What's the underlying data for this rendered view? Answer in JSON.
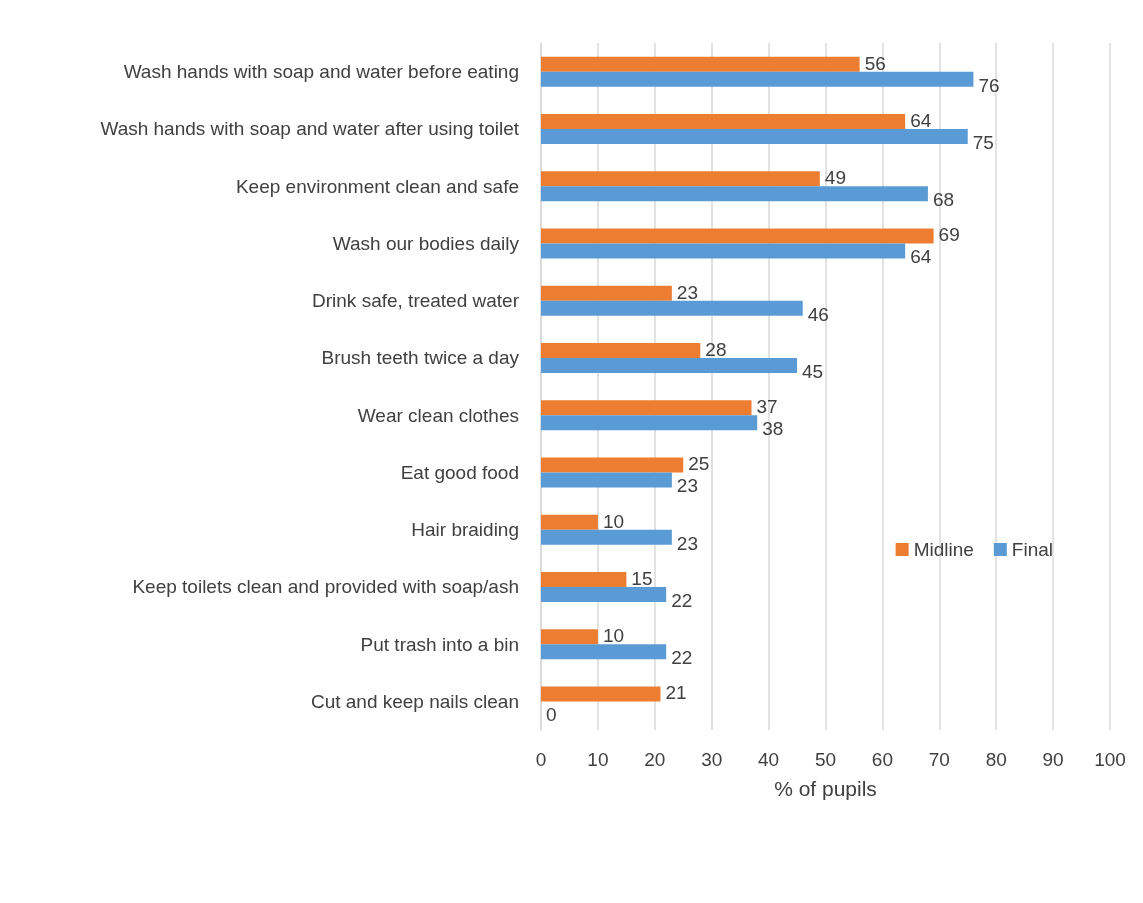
{
  "chart_data": {
    "type": "bar",
    "orientation": "horizontal",
    "xlabel": "% of pupils",
    "categories": [
      "Wash hands with soap and water before eating",
      "Wash hands with soap and water after using toilet",
      "Keep environment clean and safe",
      "Wash our bodies daily",
      "Drink safe, treated water",
      "Brush teeth twice a day",
      "Wear clean clothes",
      "Eat good food",
      "Hair braiding",
      "Keep toilets clean and provided with soap/ash",
      "Put trash into a bin",
      "Cut and keep nails clean"
    ],
    "series": [
      {
        "name": "Midline",
        "color": "#ed7d31",
        "values": [
          56,
          64,
          49,
          69,
          23,
          28,
          37,
          25,
          10,
          15,
          10,
          21
        ]
      },
      {
        "name": "Final",
        "color": "#5b9bd5",
        "values": [
          76,
          75,
          68,
          64,
          46,
          45,
          38,
          23,
          23,
          22,
          22,
          0
        ]
      }
    ],
    "xlim": [
      0,
      100
    ],
    "xticks": [
      0,
      10,
      20,
      30,
      40,
      50,
      60,
      70,
      80,
      90,
      100
    ],
    "grid": "x",
    "legend": "right",
    "data_labels": true
  }
}
